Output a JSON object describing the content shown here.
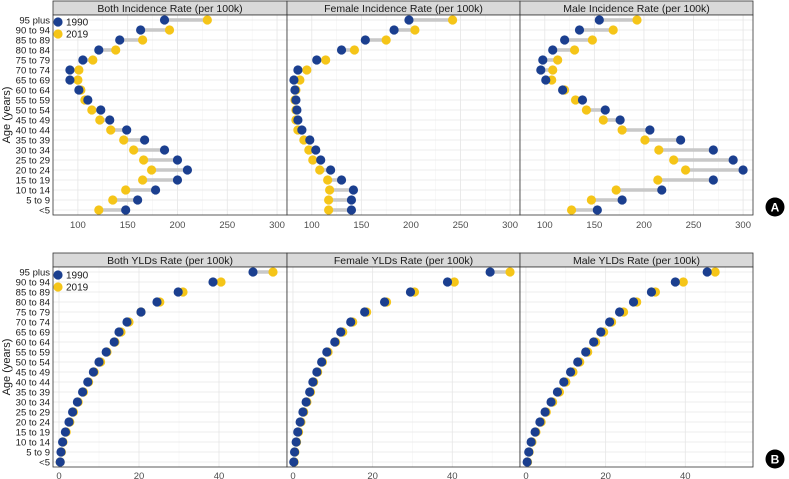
{
  "chart_data": [
    {
      "type": "dumbbell",
      "title": "Both Incidence Rate (per 100k)",
      "ylabel": "Age (years)",
      "xlim": [
        75,
        310
      ],
      "xticks": [
        100,
        150,
        200,
        250,
        300
      ],
      "categories": [
        "95 plus",
        "90 to 94",
        "85 to 89",
        "80 to 84",
        "75 to 79",
        "70 to 74",
        "65 to 69",
        "60 to 64",
        "55 to 59",
        "50 to 54",
        "45 to 49",
        "40 to 44",
        "35 to 39",
        "30 to 34",
        "25 to 29",
        "20 to 24",
        "15 to 19",
        "10 to 14",
        "5 to 9",
        "<5"
      ],
      "series": [
        {
          "name": "1990",
          "color": "#1b3f8f",
          "values": [
            187,
            163,
            142,
            121,
            105,
            92,
            92,
            101,
            110,
            123,
            132,
            149,
            167,
            187,
            200,
            210,
            200,
            178,
            160,
            148
          ]
        },
        {
          "name": "2019",
          "color": "#f5c518",
          "values": [
            230,
            192,
            165,
            138,
            115,
            101,
            100,
            103,
            107,
            114,
            122,
            133,
            146,
            156,
            166,
            174,
            165,
            148,
            135,
            121
          ]
        }
      ]
    },
    {
      "type": "dumbbell",
      "title": "Female Incidence Rate (per 100k)",
      "xlim": [
        75,
        310
      ],
      "xticks": [
        100,
        150,
        200,
        250,
        300
      ],
      "categories": [
        "95 plus",
        "90 to 94",
        "85 to 89",
        "80 to 84",
        "75 to 79",
        "70 to 74",
        "65 to 69",
        "60 to 64",
        "55 to 59",
        "50 to 54",
        "45 to 49",
        "40 to 44",
        "35 to 39",
        "30 to 34",
        "25 to 29",
        "20 to 24",
        "15 to 19",
        "10 to 14",
        "5 to 9",
        "<5"
      ],
      "series": [
        {
          "name": "1990",
          "color": "#1b3f8f",
          "values": [
            198,
            183,
            154,
            130,
            105,
            86,
            82,
            83,
            84,
            85,
            86,
            90,
            98,
            104,
            109,
            119,
            130,
            142,
            140,
            140
          ]
        },
        {
          "name": "2019",
          "color": "#f5c518",
          "values": [
            242,
            204,
            175,
            143,
            114,
            95,
            88,
            84,
            83,
            84,
            84,
            86,
            92,
            97,
            101,
            108,
            116,
            118,
            117,
            117
          ]
        }
      ]
    },
    {
      "type": "dumbbell",
      "title": "Male Incidence Rate (per 100k)",
      "xlim": [
        75,
        310
      ],
      "xticks": [
        100,
        150,
        200,
        250,
        300
      ],
      "categories": [
        "95 plus",
        "90 to 94",
        "85 to 89",
        "80 to 84",
        "75 to 79",
        "70 to 74",
        "65 to 69",
        "60 to 64",
        "55 to 59",
        "50 to 54",
        "45 to 49",
        "40 to 44",
        "35 to 39",
        "30 to 34",
        "25 to 29",
        "20 to 24",
        "15 to 19",
        "10 to 14",
        "5 to 9",
        "<5"
      ],
      "series": [
        {
          "name": "1990",
          "color": "#1b3f8f",
          "values": [
            155,
            135,
            120,
            108,
            98,
            96,
            101,
            118,
            138,
            161,
            176,
            206,
            237,
            270,
            290,
            300,
            270,
            218,
            178,
            153
          ]
        },
        {
          "name": "2019",
          "color": "#f5c518",
          "values": [
            193,
            169,
            148,
            130,
            113,
            108,
            107,
            120,
            131,
            142,
            159,
            178,
            201,
            215,
            230,
            242,
            214,
            172,
            147,
            127
          ]
        }
      ]
    },
    {
      "type": "dumbbell",
      "title": "Both YLDs Rate (per 100k)",
      "ylabel": "Age (years)",
      "xlim": [
        -1.5,
        57
      ],
      "xticks": [
        0,
        20,
        40
      ],
      "categories": [
        "95 plus",
        "90 to 94",
        "85 to 89",
        "80 to 84",
        "75 to 79",
        "70 to 74",
        "65 to 69",
        "60 to 64",
        "55 to 59",
        "50 to 54",
        "45 to 49",
        "40 to 44",
        "35 to 39",
        "30 to 34",
        "25 to 29",
        "20 to 24",
        "15 to 19",
        "10 to 14",
        "5 to 9",
        "<5"
      ],
      "series": [
        {
          "name": "1990",
          "color": "#1b3f8f",
          "values": [
            48.5,
            38.5,
            29.8,
            24.5,
            20.5,
            17.0,
            15.0,
            13.8,
            11.8,
            10.0,
            8.6,
            7.2,
            5.9,
            4.6,
            3.4,
            2.5,
            1.6,
            0.9,
            0.5,
            0.3
          ]
        },
        {
          "name": "2019",
          "color": "#f5c518",
          "values": [
            53.5,
            40.5,
            31.0,
            25.2,
            20.5,
            17.5,
            15.5,
            14.0,
            12.0,
            10.4,
            8.8,
            7.4,
            6.1,
            4.8,
            3.6,
            2.7,
            1.8,
            1.0,
            0.6,
            0.3
          ]
        }
      ]
    },
    {
      "type": "dumbbell",
      "title": "Female YLDs  Rate (per 100k)",
      "xlim": [
        -1.5,
        57
      ],
      "xticks": [
        0,
        20,
        40
      ],
      "categories": [
        "95 plus",
        "90 to 94",
        "85 to 89",
        "80 to 84",
        "75 to 79",
        "70 to 74",
        "65 to 69",
        "60 to 64",
        "55 to 59",
        "50 to 54",
        "45 to 49",
        "40 to 44",
        "35 to 39",
        "30 to 34",
        "25 to 29",
        "20 to 24",
        "15 to 19",
        "10 to 14",
        "5 to 9",
        "<5"
      ],
      "series": [
        {
          "name": "1990",
          "color": "#1b3f8f",
          "values": [
            49.5,
            38.8,
            29.5,
            23.0,
            18.0,
            14.5,
            12.0,
            10.5,
            8.5,
            7.2,
            6.0,
            5.0,
            4.2,
            3.3,
            2.5,
            1.8,
            1.2,
            0.8,
            0.4,
            0.2
          ]
        },
        {
          "name": "2019",
          "color": "#f5c518",
          "values": [
            54.5,
            40.5,
            30.5,
            23.5,
            18.5,
            15.0,
            12.5,
            10.7,
            8.8,
            7.4,
            6.2,
            5.2,
            4.4,
            3.5,
            2.7,
            2.0,
            1.4,
            0.9,
            0.5,
            0.3
          ]
        }
      ]
    },
    {
      "type": "dumbbell",
      "title": "Male YLDs  Rate (per 100k)",
      "xlim": [
        -1.5,
        57
      ],
      "xticks": [
        0,
        20,
        40
      ],
      "categories": [
        "95 plus",
        "90 to 94",
        "85 to 89",
        "80 to 84",
        "75 to 79",
        "70 to 74",
        "65 to 69",
        "60 to 64",
        "55 to 59",
        "50 to 54",
        "45 to 49",
        "40 to 44",
        "35 to 39",
        "30 to 34",
        "25 to 29",
        "20 to 24",
        "15 to 19",
        "10 to 14",
        "5 to 9",
        "<5"
      ],
      "series": [
        {
          "name": "1990",
          "color": "#1b3f8f",
          "values": [
            45.5,
            37.5,
            31.5,
            27.0,
            23.5,
            21.0,
            18.8,
            17.0,
            15.0,
            13.0,
            11.2,
            9.5,
            7.9,
            6.3,
            4.8,
            3.5,
            2.3,
            1.3,
            0.7,
            0.3
          ]
        },
        {
          "name": "2019",
          "color": "#f5c518",
          "values": [
            47.5,
            39.5,
            32.5,
            27.8,
            24.5,
            21.5,
            19.5,
            17.5,
            15.5,
            13.5,
            11.8,
            10.0,
            8.4,
            6.7,
            5.1,
            3.8,
            2.5,
            1.5,
            0.8,
            0.4
          ]
        }
      ]
    }
  ],
  "legend": [
    {
      "label": "1990",
      "color": "#1b3f8f"
    },
    {
      "label": "2019",
      "color": "#f5c518"
    }
  ],
  "panel_tags": [
    "A",
    "B"
  ],
  "segment_color": "#c8c8c8"
}
